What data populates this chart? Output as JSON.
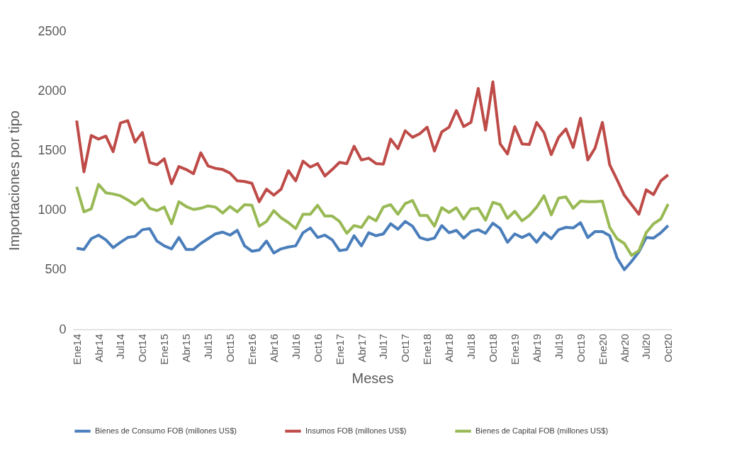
{
  "chart_data": {
    "type": "line",
    "xlabel": "Meses",
    "ylabel": "Importaciones por tipo",
    "categories": [
      "Ene14",
      null,
      null,
      "Abr14",
      null,
      null,
      "Jul14",
      null,
      null,
      "Oct14",
      null,
      null,
      "Ene15",
      null,
      null,
      "Abr15",
      null,
      null,
      "Jul15",
      null,
      null,
      "Oct15",
      null,
      null,
      "Ene16",
      null,
      null,
      "Abr16",
      null,
      null,
      "Jul16",
      null,
      null,
      "Oct16",
      null,
      null,
      "Ene17",
      null,
      null,
      "Abr17",
      null,
      null,
      "Jul17",
      null,
      null,
      "Oct17",
      null,
      null,
      "Ene18",
      null,
      null,
      "Abr18",
      null,
      null,
      "Jul18",
      null,
      null,
      "Oct18",
      null,
      null,
      "Ene19",
      null,
      null,
      "Abr19",
      null,
      null,
      "Jul19",
      null,
      null,
      "Oct19",
      null,
      null,
      "Ene20",
      null,
      null,
      "Abr20",
      null,
      null,
      "Jul20",
      null,
      null,
      "Oct20"
    ],
    "series": [
      {
        "name": "Bienes de Consumo FOB (millones US$)",
        "color": "#4a7ebb",
        "values": [
          680,
          670,
          760,
          790,
          750,
          685,
          730,
          770,
          780,
          835,
          845,
          740,
          700,
          675,
          770,
          670,
          670,
          720,
          760,
          800,
          815,
          790,
          830,
          700,
          655,
          665,
          740,
          640,
          675,
          690,
          700,
          810,
          850,
          770,
          790,
          750,
          660,
          670,
          785,
          700,
          810,
          785,
          800,
          885,
          840,
          905,
          865,
          770,
          750,
          765,
          870,
          810,
          830,
          765,
          820,
          835,
          805,
          890,
          845,
          730,
          800,
          770,
          800,
          730,
          810,
          760,
          835,
          855,
          850,
          895,
          770,
          820,
          820,
          785,
          600,
          500,
          570,
          650,
          770,
          765,
          810,
          870
        ]
      },
      {
        "name": "Insumos FOB (millones US$)",
        "color": "#be4b48",
        "values": [
          1750,
          1320,
          1625,
          1595,
          1620,
          1490,
          1730,
          1750,
          1570,
          1650,
          1400,
          1380,
          1430,
          1220,
          1365,
          1340,
          1305,
          1480,
          1370,
          1350,
          1340,
          1310,
          1245,
          1240,
          1225,
          1070,
          1175,
          1125,
          1175,
          1330,
          1245,
          1410,
          1360,
          1390,
          1285,
          1340,
          1400,
          1390,
          1535,
          1420,
          1435,
          1390,
          1385,
          1595,
          1515,
          1665,
          1610,
          1640,
          1695,
          1495,
          1655,
          1695,
          1835,
          1700,
          1735,
          2020,
          1670,
          2075,
          1555,
          1470,
          1700,
          1555,
          1550,
          1735,
          1650,
          1465,
          1610,
          1680,
          1525,
          1770,
          1420,
          1520,
          1735,
          1380,
          1255,
          1125,
          1045,
          965,
          1170,
          1130,
          1245,
          1295
        ]
      },
      {
        "name": "Bienes de Capital  FOB (millones US$)",
        "color": "#98b954",
        "values": [
          1195,
          985,
          1010,
          1215,
          1145,
          1135,
          1120,
          1085,
          1045,
          1095,
          1015,
          995,
          1025,
          885,
          1070,
          1030,
          1005,
          1015,
          1035,
          1025,
          975,
          1030,
          985,
          1045,
          1040,
          865,
          905,
          995,
          935,
          895,
          845,
          965,
          965,
          1040,
          950,
          950,
          905,
          805,
          870,
          855,
          945,
          910,
          1025,
          1045,
          965,
          1055,
          1080,
          955,
          955,
          865,
          1020,
          980,
          1020,
          925,
          1010,
          1015,
          915,
          1065,
          1045,
          930,
          990,
          910,
          955,
          1025,
          1120,
          960,
          1100,
          1110,
          1015,
          1075,
          1070,
          1070,
          1075,
          855,
          760,
          720,
          620,
          660,
          810,
          885,
          925,
          1050
        ]
      }
    ],
    "ylim": [
      0,
      2500
    ],
    "yticks": [
      0,
      500,
      1000,
      1500,
      2000,
      2500
    ],
    "legend": "bottom",
    "grid": false,
    "marker": "none",
    "line_style": "solid"
  }
}
